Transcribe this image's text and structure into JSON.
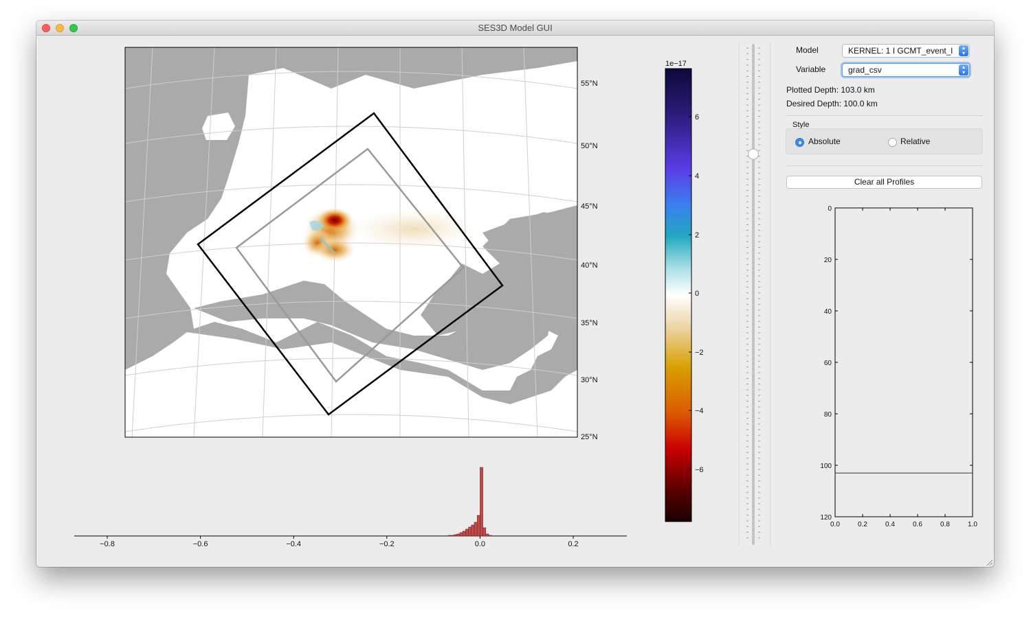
{
  "window": {
    "title": "SES3D Model GUI"
  },
  "map": {
    "lat_labels": [
      "55°N",
      "50°N",
      "45°N",
      "40°N",
      "35°N",
      "30°N",
      "25°N"
    ]
  },
  "colorbar": {
    "exponent": "1e−17",
    "ticks": [
      "6",
      "4",
      "2",
      "0",
      "−2",
      "−4",
      "−6"
    ]
  },
  "histogram": {
    "ticks": [
      "−0.8",
      "−0.6",
      "−0.4",
      "−0.2",
      "0.0",
      "0.2"
    ],
    "bars": [
      0.01,
      0.01,
      0.02,
      0.03,
      0.05,
      0.07,
      0.1,
      0.13,
      0.16,
      0.2,
      0.3,
      1.0,
      0.12,
      0.03,
      0.01
    ]
  },
  "controls": {
    "model_label": "Model",
    "model_value": "KERNEL: 1 I GCMT_event_l",
    "variable_label": "Variable",
    "variable_value": "grad_csv",
    "plotted_depth": "Plotted Depth: 103.0 km",
    "desired_depth": "Desired Depth: 100.0 km",
    "style_label": "Style",
    "style_absolute": "Absolute",
    "style_relative": "Relative",
    "clear_button": "Clear all Profiles"
  },
  "depth_slider": {
    "fraction_from_top": 0.22
  },
  "profile_plot": {
    "y_ticks": [
      "0",
      "20",
      "40",
      "60",
      "80",
      "100",
      "120"
    ],
    "x_ticks": [
      "0.0",
      "0.2",
      "0.4",
      "0.6",
      "0.8",
      "1.0"
    ],
    "ylim": [
      0,
      120
    ],
    "xlim": [
      0,
      1
    ],
    "depth_line": 103
  }
}
